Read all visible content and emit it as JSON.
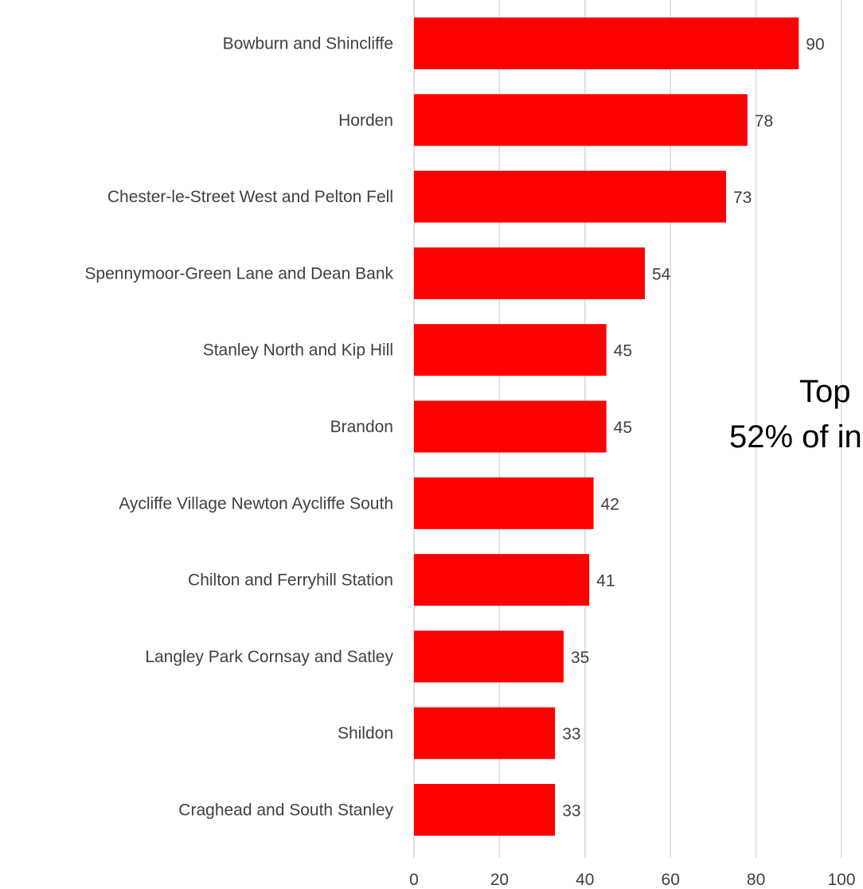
{
  "chart_data": {
    "type": "bar",
    "orientation": "horizontal",
    "categories": [
      "Bowburn and Shincliffe",
      "Horden",
      "Chester-le-Street West and Pelton Fell",
      "Spennymoor-Green Lane and Dean Bank",
      "Stanley North and Kip Hill",
      "Brandon",
      "Aycliffe Village Newton Aycliffe South",
      "Chilton and Ferryhill Station",
      "Langley Park Cornsay and Satley",
      "Shildon",
      "Craghead and South Stanley"
    ],
    "values": [
      90,
      78,
      73,
      54,
      45,
      45,
      42,
      41,
      35,
      33,
      33
    ],
    "xlim": [
      0,
      100
    ],
    "xticks": [
      0,
      20,
      40,
      60,
      80,
      100
    ],
    "grid": true,
    "bar_color": "#ff0000",
    "annotation": [
      "Top",
      "52% of in"
    ]
  }
}
